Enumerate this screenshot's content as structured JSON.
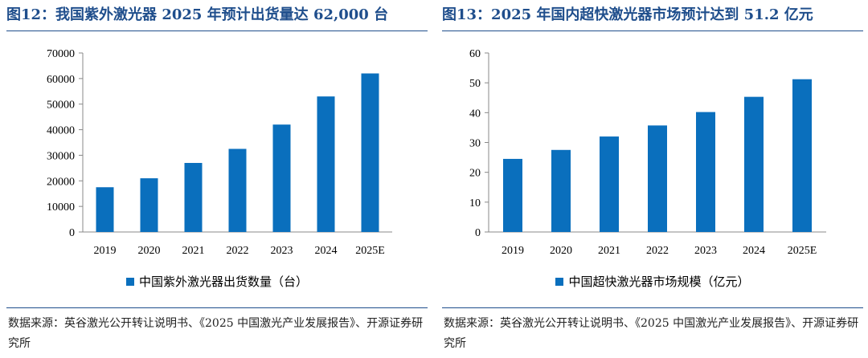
{
  "chart_data": [
    {
      "type": "bar",
      "title": "图12：我国紫外激光器 2025 年预计出货量达 62,000 台",
      "categories": [
        "2019",
        "2020",
        "2021",
        "2022",
        "2023",
        "2024",
        "2025E"
      ],
      "series": [
        {
          "name": "中国紫外激光器出货数量（台）",
          "values": [
            17500,
            21000,
            27000,
            32500,
            42000,
            53000,
            62000
          ]
        }
      ],
      "ylim": [
        0,
        70000
      ],
      "yticks": [
        0,
        10000,
        20000,
        30000,
        40000,
        50000,
        60000,
        70000
      ],
      "color": "#0a6fbd",
      "grid": false,
      "legend": "bottom",
      "source": "数据来源：英谷激光公开转让说明书、《2025 中国激光产业发展报告》、开源证券研究所"
    },
    {
      "type": "bar",
      "title": "图13：2025 年国内超快激光器市场预计达到 51.2 亿元",
      "categories": [
        "2019",
        "2020",
        "2021",
        "2022",
        "2023",
        "2024",
        "2025E"
      ],
      "series": [
        {
          "name": "中国超快激光器市场规模（亿元）",
          "values": [
            24.5,
            27.5,
            32,
            35.7,
            40.2,
            45.3,
            51.2
          ]
        }
      ],
      "ylim": [
        0,
        60
      ],
      "yticks": [
        0,
        10,
        20,
        30,
        40,
        50,
        60
      ],
      "color": "#0a6fbd",
      "grid": false,
      "legend": "bottom",
      "source": "数据来源：英谷激光公开转让说明书、《2025 中国激光产业发展报告》、开源证券研究所"
    }
  ]
}
